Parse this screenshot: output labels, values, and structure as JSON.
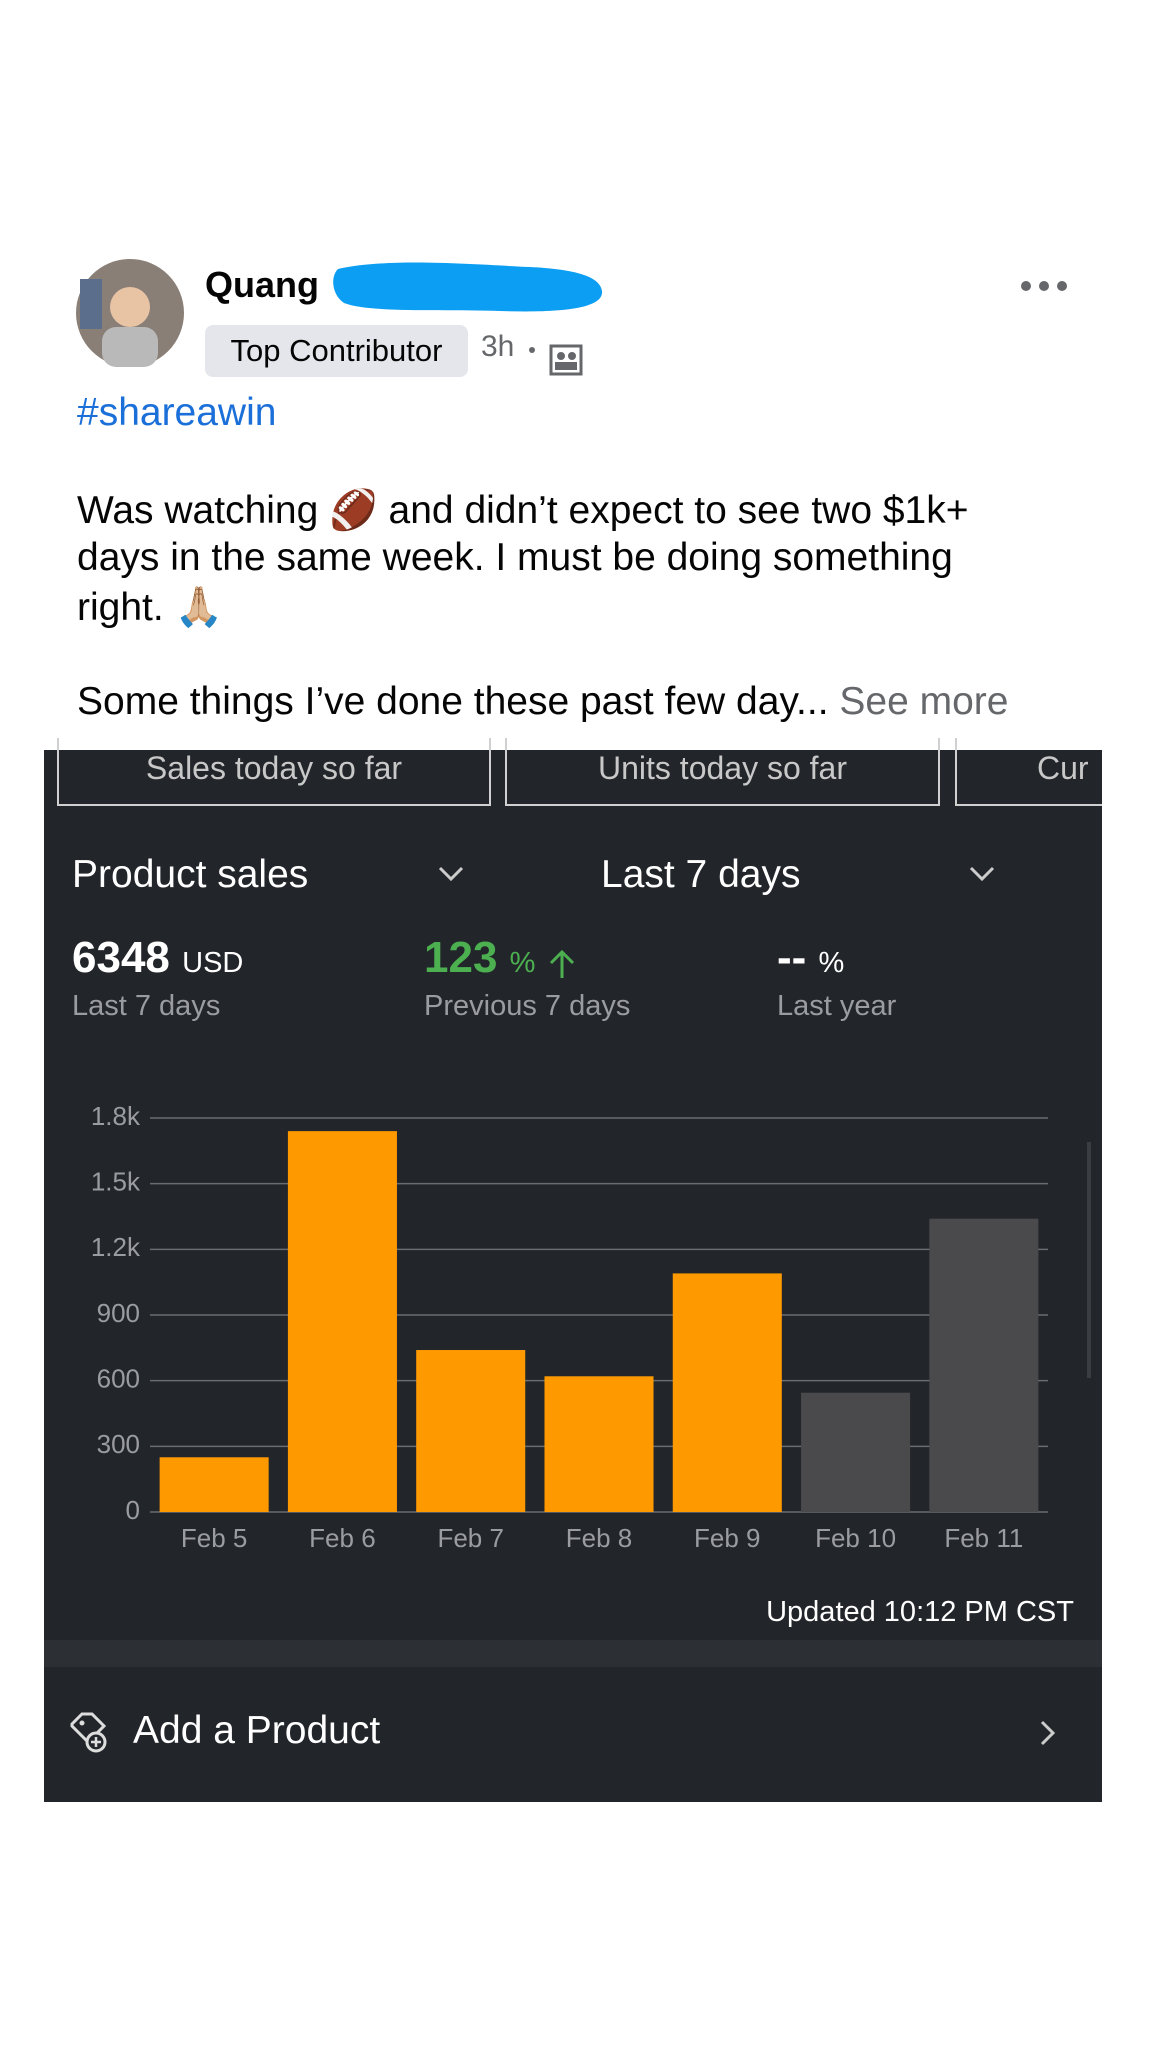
{
  "post": {
    "author": "Quang",
    "badge": "Top Contributor",
    "time": "3h",
    "hashtag": "#shareawin",
    "body_lines": [
      "Was watching 🏈 and didn’t expect to see two $1k+",
      "days in the same week. I must be doing something",
      "right. 🙏🏼"
    ],
    "preview": "Some things I’ve done these past few day...",
    "see_more": "See more"
  },
  "dashboard": {
    "tabs": [
      "Sales today so far",
      "Units today so far",
      "Cur"
    ],
    "metric_dropdown": "Product sales",
    "range_dropdown": "Last 7 days",
    "stats": [
      {
        "value": "6348",
        "unit": "USD",
        "label": "Last 7 days"
      },
      {
        "value": "123",
        "unit": "%",
        "label": "Previous 7 days"
      },
      {
        "value": "--",
        "unit": "%",
        "label": "Last year"
      }
    ],
    "updated": "Updated 10:12 PM CST",
    "action": "Add a Product"
  },
  "chart_data": {
    "type": "bar",
    "categories": [
      "Feb 5",
      "Feb 6",
      "Feb 7",
      "Feb 8",
      "Feb 9",
      "Feb 10",
      "Feb 11"
    ],
    "values": [
      250,
      1740,
      740,
      620,
      1090,
      545,
      1340
    ],
    "colors": [
      "#ff9900",
      "#ff9900",
      "#ff9900",
      "#ff9900",
      "#ff9900",
      "#4a4a4c",
      "#4a4a4c"
    ],
    "ylim": [
      0,
      1800
    ],
    "yticks": [
      0,
      300,
      600,
      900,
      {
        "value": 1200,
        "label": "1.2k"
      },
      {
        "value": 1500,
        "label": "1.5k"
      },
      {
        "value": 1800,
        "label": "1.8k"
      }
    ],
    "grid": true
  }
}
